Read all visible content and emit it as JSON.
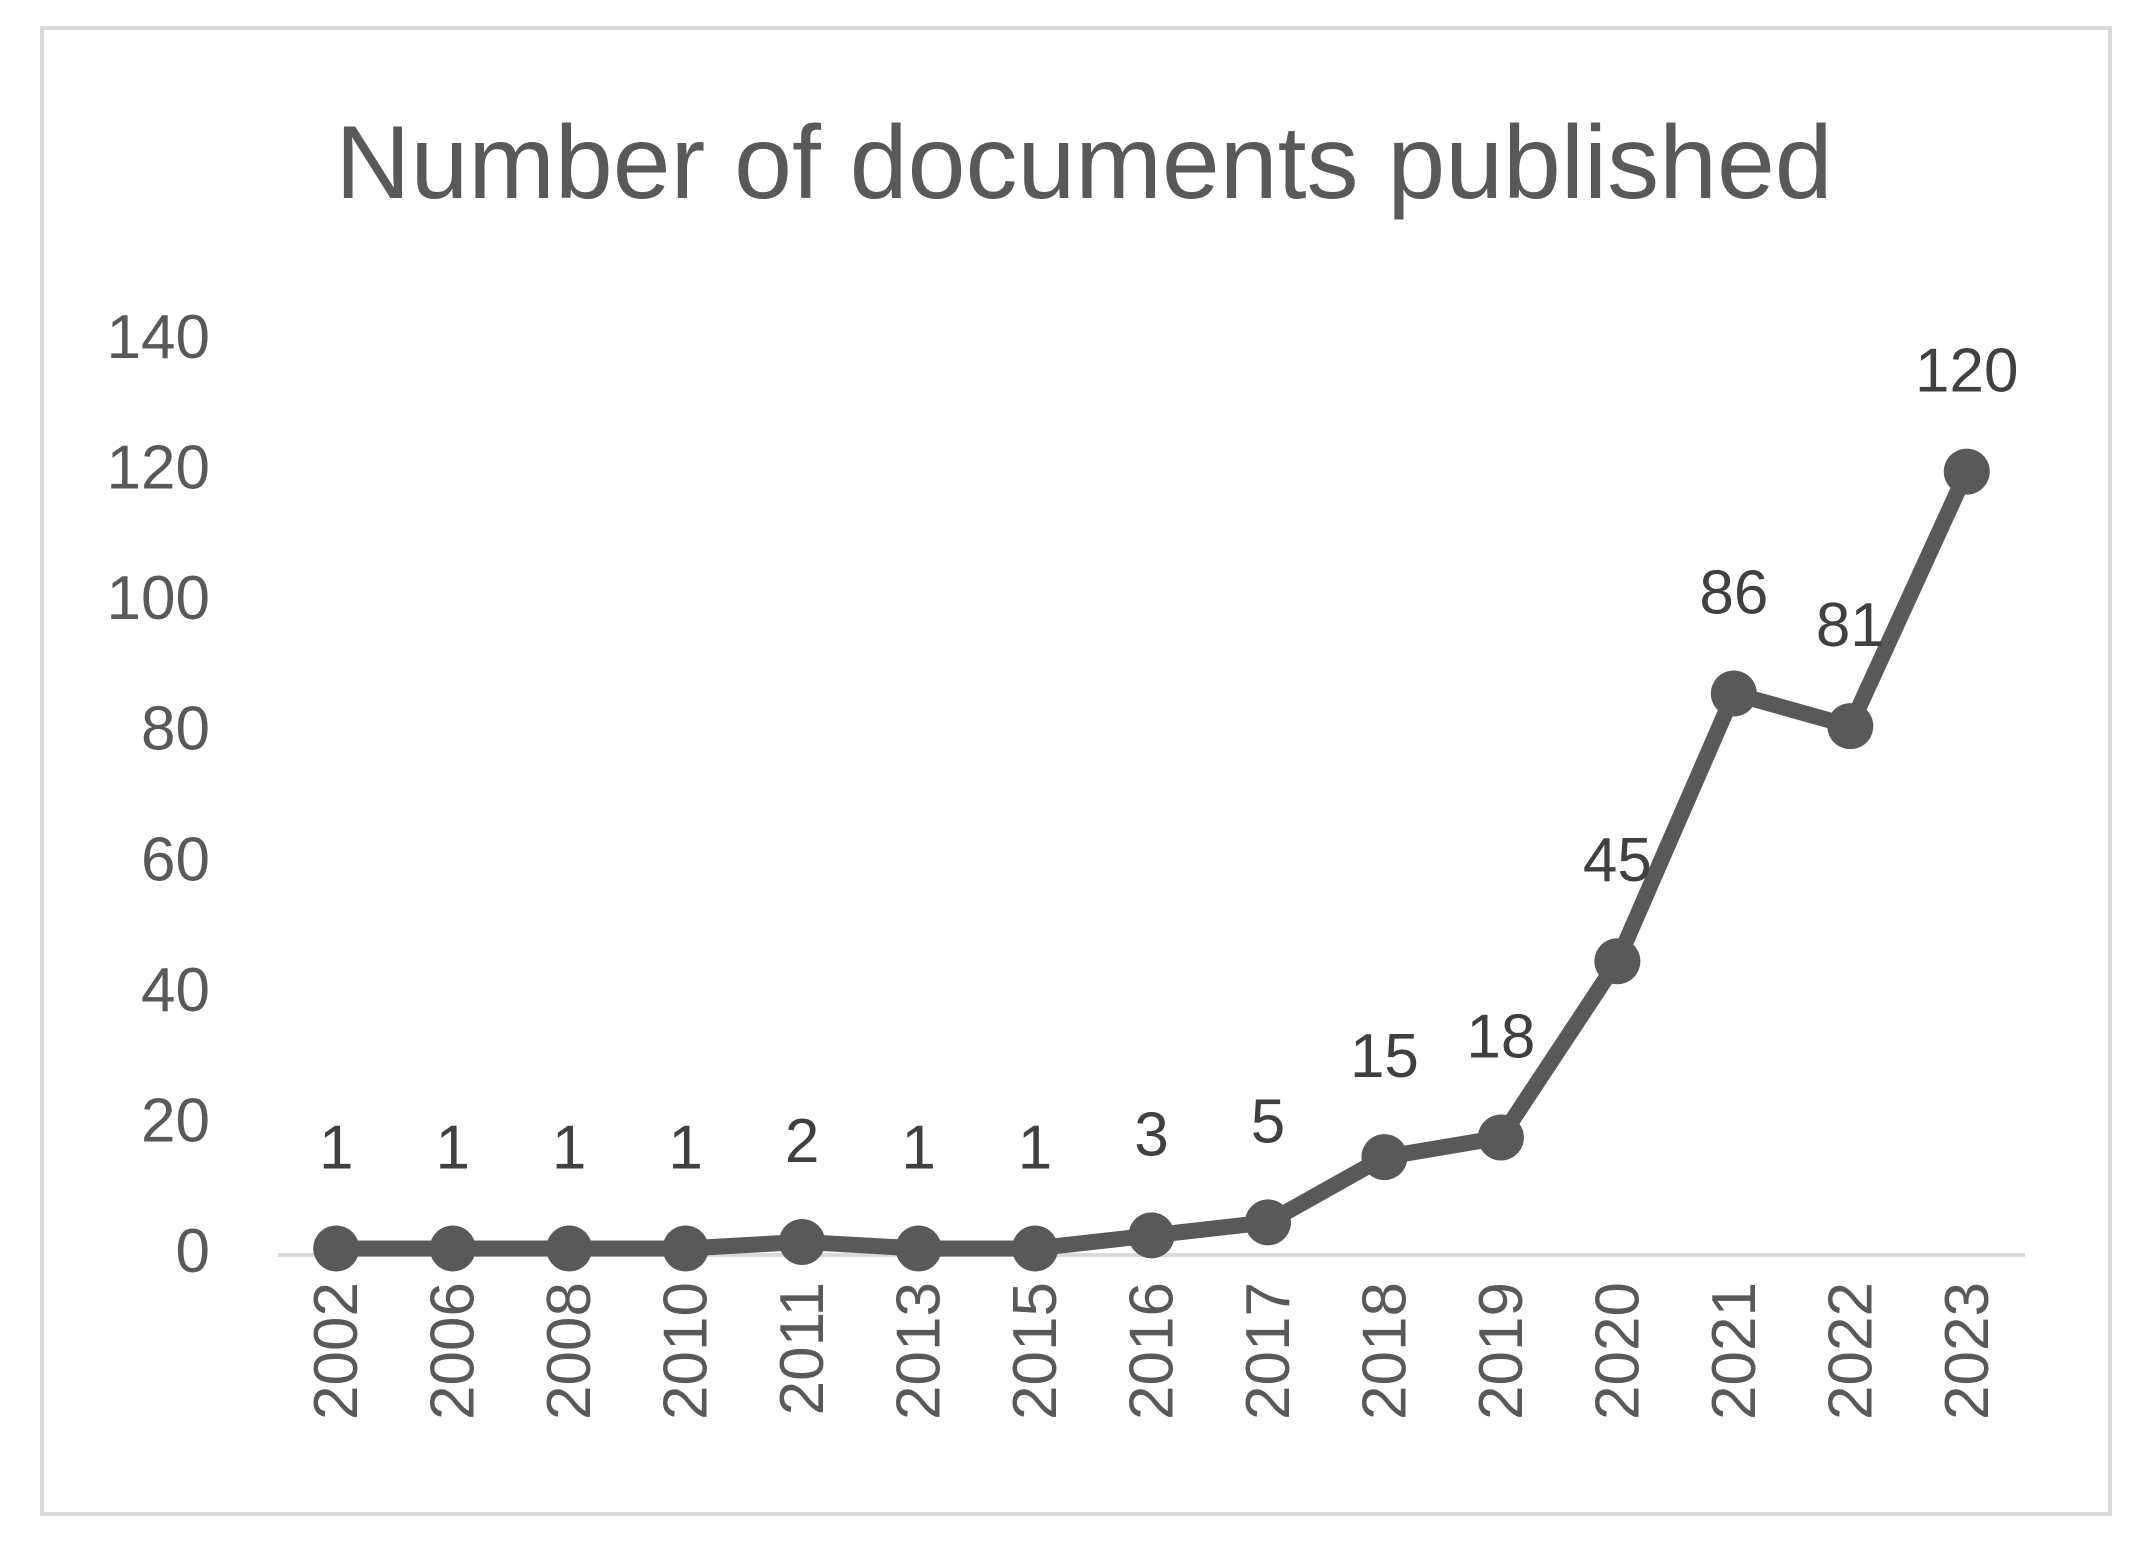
{
  "chart_data": {
    "type": "line",
    "title": "Number of documents published",
    "xlabel": "",
    "ylabel": "",
    "categories": [
      "2002",
      "2006",
      "2008",
      "2010",
      "2011",
      "2013",
      "2015",
      "2016",
      "2017",
      "2018",
      "2019",
      "2020",
      "2021",
      "2022",
      "2023"
    ],
    "series": [
      {
        "values": [
          1,
          1,
          1,
          1,
          2,
          1,
          1,
          3,
          5,
          15,
          18,
          45,
          86,
          81,
          120
        ]
      }
    ],
    "data_labels": [
      "1",
      "1",
      "1",
      "1",
      "2",
      "1",
      "1",
      "3",
      "5",
      "15",
      "18",
      "45",
      "86",
      "81",
      "120"
    ],
    "ylim": [
      0,
      140
    ],
    "yticks": [
      "0",
      "20",
      "40",
      "60",
      "80",
      "100",
      "120",
      "140"
    ],
    "grid": false,
    "legend": "none",
    "x_tick_rotation": "vertical",
    "colors": {
      "series": "#595959",
      "text": "#595959",
      "axis": "#d9d9d9",
      "frame": "#d9d9d9",
      "background": "#ffffff"
    }
  }
}
